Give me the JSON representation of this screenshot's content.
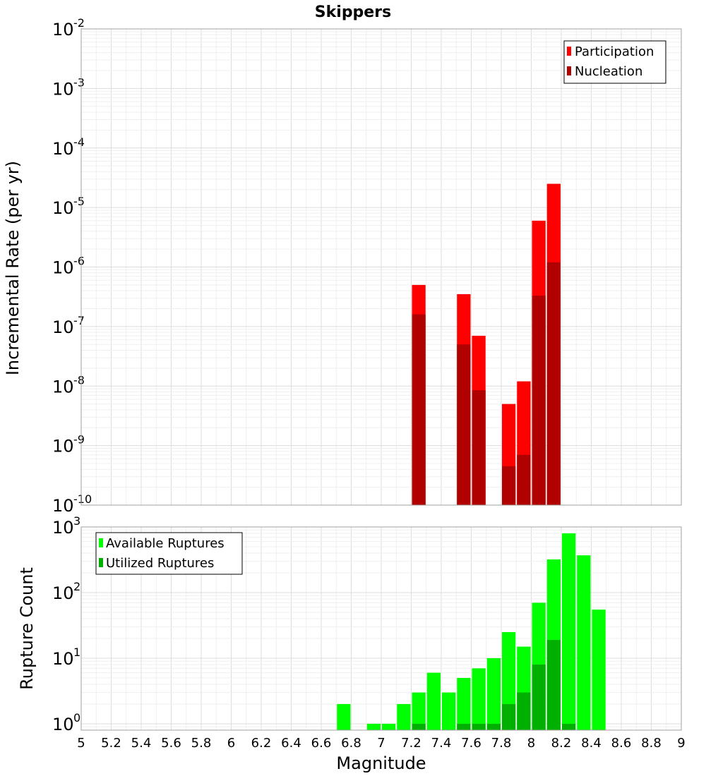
{
  "chart_data": [
    {
      "type": "bar",
      "title": "Skippers",
      "ylabel": "Incremental Rate (per yr)",
      "xlabel": "",
      "yscale": "log",
      "ylim": [
        1e-10,
        0.01
      ],
      "xlim": [
        5,
        9
      ],
      "grid": true,
      "legend_position": "top-right",
      "x": [
        7.25,
        7.55,
        7.65,
        7.85,
        7.95,
        8.05,
        8.15
      ],
      "series": [
        {
          "name": "Participation",
          "color": "#ff0000",
          "values": [
            5e-07,
            3.5e-07,
            7e-08,
            5e-09,
            1.2e-08,
            6e-06,
            2.5e-05
          ]
        },
        {
          "name": "Nucleation",
          "color": "#b00000",
          "values": [
            1.6e-07,
            5e-08,
            8.5e-09,
            4.5e-10,
            7e-10,
            3.3e-07,
            1.2e-06
          ]
        }
      ],
      "yticks": [
        {
          "value": 0.01,
          "base": "10",
          "exp": "-2"
        },
        {
          "value": 0.001,
          "base": "10",
          "exp": "-3"
        },
        {
          "value": 0.0001,
          "base": "10",
          "exp": "-4"
        },
        {
          "value": 1e-05,
          "base": "10",
          "exp": "-5"
        },
        {
          "value": 1e-06,
          "base": "10",
          "exp": "-6"
        },
        {
          "value": 1e-07,
          "base": "10",
          "exp": "-7"
        },
        {
          "value": 1e-08,
          "base": "10",
          "exp": "-8"
        },
        {
          "value": 1e-09,
          "base": "10",
          "exp": "-9"
        },
        {
          "value": 1e-10,
          "base": "10",
          "exp": "-10"
        }
      ]
    },
    {
      "type": "bar",
      "title": "",
      "ylabel": "Rupture Count",
      "xlabel": "Magnitude",
      "yscale": "log",
      "ylim": [
        0.8,
        1000
      ],
      "xlim": [
        5,
        9
      ],
      "grid": true,
      "legend_position": "top-left",
      "x": [
        6.75,
        6.95,
        7.05,
        7.15,
        7.25,
        7.35,
        7.45,
        7.55,
        7.65,
        7.75,
        7.85,
        7.95,
        8.05,
        8.15,
        8.25,
        8.35,
        8.45
      ],
      "series": [
        {
          "name": "Available Ruptures",
          "color": "#00ff00",
          "values": [
            2,
            1,
            1,
            2,
            3,
            6,
            3,
            5,
            7,
            10,
            25,
            15,
            70,
            320,
            800,
            370,
            55
          ]
        },
        {
          "name": "Utilized Ruptures",
          "color": "#00b000",
          "values": [
            0,
            0,
            0,
            0,
            1,
            0,
            0,
            1,
            1,
            1,
            2,
            3,
            8,
            19,
            1,
            0,
            0
          ]
        }
      ],
      "yticks": [
        {
          "value": 1000,
          "base": "10",
          "exp": "3"
        },
        {
          "value": 100,
          "base": "10",
          "exp": "2"
        },
        {
          "value": 10,
          "base": "10",
          "exp": "1"
        },
        {
          "value": 1,
          "base": "10",
          "exp": "0"
        }
      ],
      "xticks": [
        "5",
        "5.2",
        "5.4",
        "5.6",
        "5.8",
        "6",
        "6.2",
        "6.4",
        "6.6",
        "6.8",
        "7",
        "7.2",
        "7.4",
        "7.6",
        "7.8",
        "8",
        "8.2",
        "8.4",
        "8.6",
        "8.8",
        "9"
      ]
    }
  ]
}
